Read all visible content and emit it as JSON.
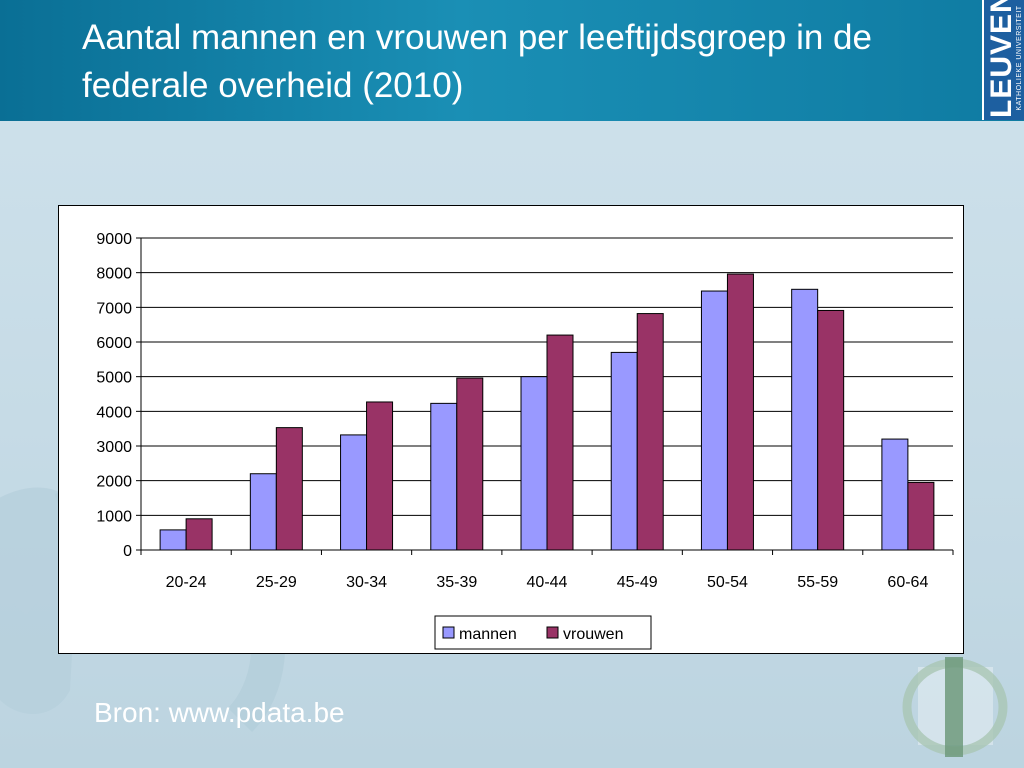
{
  "slide": {
    "title": "Aantal mannen en vrouwen per leeftijdsgroep in de federale overheid (2010)",
    "source": "Bron: www.pdata.be",
    "logo_main": "LEUVEN",
    "logo_sub": "KATHOLIEKE UNIVERSITEIT"
  },
  "colors": {
    "header": "#0f7ba2",
    "mannen": "#9999ff",
    "vrouwen": "#993366"
  },
  "chart_data": {
    "type": "bar",
    "categories": [
      "20-24",
      "25-29",
      "30-34",
      "35-39",
      "40-44",
      "45-49",
      "50-54",
      "55-59",
      "60-64"
    ],
    "series": [
      {
        "name": "mannen",
        "values": [
          580,
          2200,
          3320,
          4230,
          5000,
          5700,
          7470,
          7520,
          3200
        ]
      },
      {
        "name": "vrouwen",
        "values": [
          900,
          3530,
          4270,
          4960,
          6200,
          6820,
          7960,
          6910,
          1950
        ]
      }
    ],
    "yticks": [
      "0",
      "1000",
      "2000",
      "3000",
      "4000",
      "5000",
      "6000",
      "7000",
      "8000",
      "9000"
    ],
    "ylim": [
      0,
      9000
    ],
    "grid": true,
    "legend": "bottom"
  }
}
